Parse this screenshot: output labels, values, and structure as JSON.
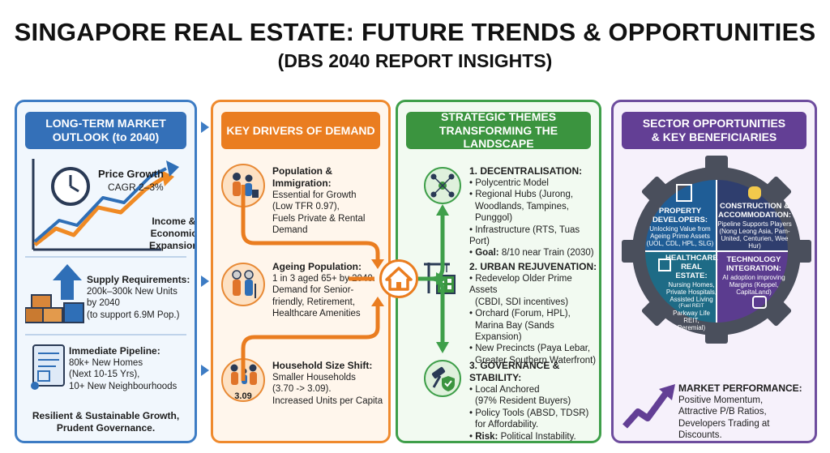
{
  "header": {
    "title": "SINGAPORE REAL ESTATE: FUTURE TRENDS & OPPORTUNITIES",
    "subtitle": "(DBS 2040 REPORT INSIGHTS)"
  },
  "col1": {
    "banner_line1": "LONG-TERM MARKET",
    "banner_line2": "OUTLOOK (to 2040)",
    "price_growth": "Price Growth",
    "cagr": "CAGR 2–3%",
    "income_line1": "Income &",
    "income_line2": "Economic",
    "income_line3": "Expansion",
    "supply_title": "Supply Requirements:",
    "supply_line1": "200k–300k New Units",
    "supply_line2": "by 2040",
    "supply_line3": "(to support 6.9M Pop.)",
    "pipeline_title": "Immediate Pipeline:",
    "pipeline_line1": "80k+ New Homes",
    "pipeline_line2": "(Next 10-15 Yrs),",
    "pipeline_line3": "10+ New Neighbourhoods",
    "footer_line1": "Resilient & Sustainable Growth,",
    "footer_line2": "Prudent Governance."
  },
  "col2": {
    "banner": "KEY DRIVERS OF DEMAND",
    "d1_title": "Population & Immigration:",
    "d1_line1": "Essential for Growth",
    "d1_line2": "(Low TFR 0.97),",
    "d1_line3": "Fuels Private & Rental",
    "d1_line4": "Demand",
    "d2_title": "Ageing Population:",
    "d2_line1": "1 in 3 aged 65+ by 2040.",
    "d2_line2": "Demand for Senior-",
    "d2_line3": "friendly, Retirement,",
    "d2_line4": "Healthcare Amenities",
    "d3_title": "Household Size Shift:",
    "d3_line1": "Smaller Households",
    "d3_line2": "(3.70 -> 3.09).",
    "d3_line3": "Increased Units per Capita",
    "household_badge": "3.09"
  },
  "col3": {
    "banner_line1": "STRATEGIC THEMES",
    "banner_line2": "TRANSFORMING THE LANDSCAPE",
    "t1_title": "1. DECENTRALISATION:",
    "t1_b1": "• Polycentric Model",
    "t1_b2a": "• Regional Hubs (Jurong,",
    "t1_b2b": "Woodlands, Tampines, Punggol)",
    "t1_b3": "• Infrastructure (RTS, Tuas Port)",
    "t1_b4_label": "Goal:",
    "t1_b4_text": "8/10 near Train (2030)",
    "t2_title": "2. URBAN REJUVENATION:",
    "t2_b1a": "• Redevelop Older Prime Assets",
    "t2_b1b": "(CBDI, SDI incentives)",
    "t2_b2a": "• Orchard (Forum, HPL),",
    "t2_b2b": "Marina Bay (Sands Expansion)",
    "t2_b3a": "• New Precincts (Paya Lebar,",
    "t2_b3b": "Greater Southern Waterfront)",
    "t3_title": "3. GOVERNANCE & STABILITY:",
    "t3_b1a": "• Local Anchored",
    "t3_b1b": "(97% Resident Buyers)",
    "t3_b2a": "• Policy Tools (ABSD, TDSR)",
    "t3_b2b": "for Affordability.",
    "t3_b3_label": "Risk:",
    "t3_b3_text": "Political Instability."
  },
  "col4": {
    "banner_line1": "SECTOR OPPORTUNITIES",
    "banner_line2": "& KEY BENEFICIARIES",
    "q1_h1": "PROPERTY",
    "q1_h2": "DEVELOPERS:",
    "q1_b1": "Unlocking Value from",
    "q1_b2": "Ageing Prime Assets",
    "q1_b3": "(UOL, CDL, HPL, SLG)",
    "q2_h1": "CONSTRUCTION &",
    "q2_h2": "ACCOMMODATION:",
    "q2_b1": "Pipeline Supports Players",
    "q2_b2": "(Nong Leong Asia, Pam-",
    "q2_b3": "United, Centurien, Wee Hur)",
    "q3_h1": "HEALTHCARE",
    "q3_h2": "REAL ESTATE:",
    "q3_b1": "Nursing Homes,",
    "q3_b2": "Private Hospitals,",
    "q3_b3": "Assisted Living",
    "q3_b4": "(Fuel REIT",
    "q3_b5": "Parkway Life REIT,",
    "q3_b6": "Peremial)",
    "q4_h1": "TECHNOLOGY",
    "q4_h2": "INTEGRATION:",
    "q4_b1": "AI adoption improving",
    "q4_b2": "Margins (Keppel,",
    "q4_b3": "CapitaLand)",
    "perf_title": "MARKET PERFORMANCE:",
    "perf_line1": "Positive Momentum,",
    "perf_line2": "Attractive P/B Ratios,",
    "perf_line3": "Developers Trading at Discounts."
  },
  "colors": {
    "blue": "#3470b8",
    "orange": "#ea7d20",
    "green": "#3b943f",
    "purple": "#633f95"
  }
}
